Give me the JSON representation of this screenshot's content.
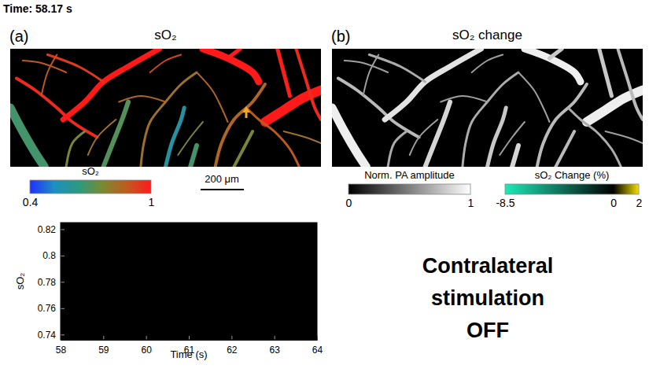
{
  "figure": {
    "time_label": "Time: 58.17 s",
    "panels": [
      {
        "label": "(a)",
        "title": "sO₂"
      },
      {
        "label": "(b)",
        "title": "sO₂ change"
      }
    ],
    "scale_bar": "200 μm",
    "colorbars": [
      {
        "title": "sO₂",
        "range": [
          0.4,
          1
        ],
        "ticks": [
          0.4,
          1
        ],
        "stops": [
          0.4,
          0.52,
          0.64,
          0.76,
          0.88,
          1
        ],
        "colors": [
          "#2030ff",
          "#1e8fc0",
          "#2a9a80",
          "#7a8a30",
          "#c05a20",
          "#ff1a1a"
        ]
      },
      {
        "title": "Norm. PA amplitude",
        "range": [
          0,
          1
        ],
        "ticks": [
          0,
          1
        ],
        "stops": [
          0,
          1
        ],
        "colors": [
          "#000000",
          "#ffffff"
        ]
      },
      {
        "title": "sO₂ Change (%)",
        "range": [
          -8.5,
          2
        ],
        "ticks": [
          -8.5,
          0,
          2
        ],
        "stops": [
          -8.5,
          0,
          2
        ],
        "colors": [
          "#1de9b6",
          "#000000",
          "#f5e000"
        ]
      }
    ],
    "stimulation_text": [
      "Contralateral",
      "stimulation",
      "OFF"
    ]
  },
  "chart_data": {
    "type": "line",
    "xlabel": "Time (s)",
    "ylabel": "sO₂",
    "x": [],
    "values": [],
    "xlim": [
      58,
      64
    ],
    "xticks": [
      58,
      59,
      60,
      61,
      62,
      63,
      64
    ],
    "ylim": [
      0.736,
      0.825
    ],
    "yticks": [
      0.74,
      0.76,
      0.78,
      0.8,
      0.82
    ]
  }
}
